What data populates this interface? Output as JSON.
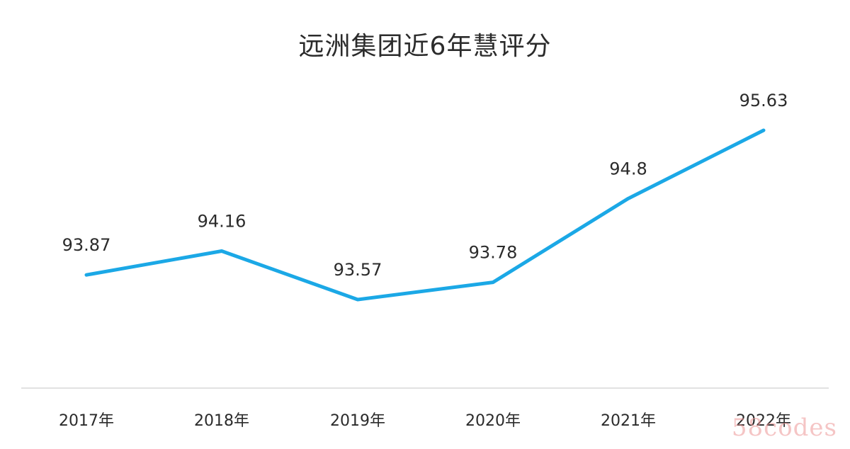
{
  "chart_data": {
    "type": "line",
    "title": "远洲集团近6年慧评分",
    "categories": [
      "2017年",
      "2018年",
      "2019年",
      "2020年",
      "2021年",
      "2022年"
    ],
    "values": [
      93.87,
      94.16,
      93.57,
      93.78,
      94.8,
      95.63
    ],
    "data_labels": [
      "93.87",
      "94.16",
      "93.57",
      "93.78",
      "94.8",
      "95.63"
    ],
    "xlabel": "",
    "ylabel": "",
    "grid": false,
    "legend": "none",
    "line_color": "#1ba8e6",
    "label_color": "#2b2b2b",
    "axis_color": "#d9d9d9"
  },
  "watermark": "58codes"
}
